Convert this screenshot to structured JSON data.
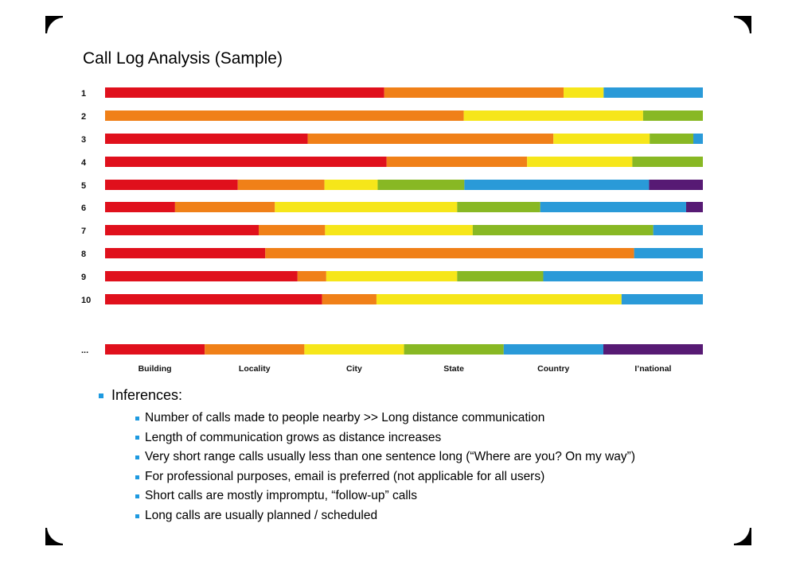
{
  "title": "Call Log Analysis (Sample)",
  "colors": {
    "Building": "#e0101c",
    "Locality": "#f08018",
    "City": "#f6e61a",
    "State": "#88b824",
    "Country": "#2a9ad8",
    "I'national": "#571a74"
  },
  "chart_data": {
    "type": "bar",
    "orientation": "horizontal",
    "stacked": true,
    "normalized": true,
    "title": "Call Log Analysis (Sample)",
    "xlabel": "",
    "ylabel": "",
    "legend": "category labels below bars",
    "grid": false,
    "categories": [
      "Building",
      "Locality",
      "City",
      "State",
      "Country",
      "I’national"
    ],
    "rows": [
      {
        "label": "1",
        "values": [
          0.467,
          0.3,
          0.067,
          0.0,
          0.166,
          0.0
        ]
      },
      {
        "label": "2",
        "values": [
          0.0,
          0.6,
          0.3,
          0.1,
          0.0,
          0.0
        ]
      },
      {
        "label": "3",
        "values": [
          0.339,
          0.411,
          0.161,
          0.073,
          0.016,
          0.0
        ]
      },
      {
        "label": "4",
        "values": [
          0.471,
          0.235,
          0.176,
          0.118,
          0.0,
          0.0
        ]
      },
      {
        "label": "5",
        "values": [
          0.222,
          0.145,
          0.089,
          0.145,
          0.309,
          0.09
        ]
      },
      {
        "label": "6",
        "values": [
          0.117,
          0.167,
          0.305,
          0.139,
          0.244,
          0.028
        ]
      },
      {
        "label": "7",
        "values": [
          0.257,
          0.111,
          0.247,
          0.302,
          0.083,
          0.0
        ]
      },
      {
        "label": "8",
        "values": [
          0.268,
          0.617,
          0.0,
          0.0,
          0.115,
          0.0
        ]
      },
      {
        "label": "9",
        "values": [
          0.322,
          0.048,
          0.219,
          0.144,
          0.267,
          0.0
        ]
      },
      {
        "label": "10",
        "values": [
          0.363,
          0.091,
          0.41,
          0.0,
          0.136,
          0.0
        ]
      },
      {
        "label": "...",
        "values": [
          0.1667,
          0.1667,
          0.1667,
          0.1667,
          0.1667,
          0.1665
        ]
      }
    ]
  },
  "inferences": {
    "heading": "Inferences:",
    "items": [
      "Number of calls made to people nearby >> Long distance communication",
      "Length of communication grows as distance increases",
      "Very short range calls usually less than one sentence long (“Where are you? On my way”)",
      "For professional purposes, email is preferred (not applicable for all users)",
      "Short calls are mostly impromptu, “follow-up” calls",
      "Long calls are usually planned / scheduled"
    ]
  }
}
